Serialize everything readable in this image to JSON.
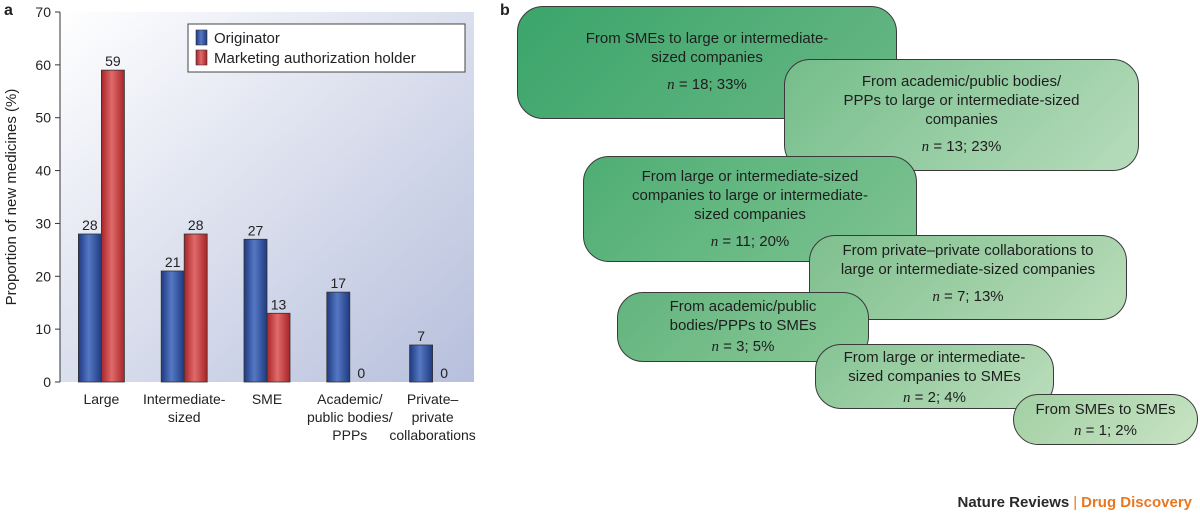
{
  "panel_a_label": "a",
  "panel_b_label": "b",
  "chart_data": {
    "type": "bar",
    "categories": [
      "Large",
      "Intermediate-sized",
      "SME",
      "Academic/public bodies/PPPs",
      "Private–private collaborations"
    ],
    "category_lines": [
      [
        "Large"
      ],
      [
        "Intermediate-",
        "sized"
      ],
      [
        "SME"
      ],
      [
        "Academic/",
        "public bodies/",
        "PPPs"
      ],
      [
        "Private–",
        "private",
        "collaborations"
      ]
    ],
    "series": [
      {
        "name": "Originator",
        "values": [
          28,
          21,
          27,
          17,
          7
        ],
        "color": "#2f4f9e"
      },
      {
        "name": "Marketing authorization holder",
        "values": [
          59,
          28,
          13,
          0,
          0
        ],
        "color": "#c8383a"
      }
    ],
    "ylabel": "Proportion of new medicines (%)",
    "ylim": [
      0,
      70
    ],
    "yticks": [
      0,
      10,
      20,
      30,
      40,
      50,
      60,
      70
    ],
    "legend_position": "top-right",
    "grid": false,
    "background": "gradient blue-grey"
  },
  "flows": [
    {
      "text": "From SMEs to large or intermediate-sized companies",
      "lines": [
        "From SMEs to large or intermediate-",
        "sized companies"
      ],
      "n": "18",
      "pct": "33%"
    },
    {
      "text": "From academic/public bodies/PPPs to large or intermediate-sized companies",
      "lines": [
        "From academic/public bodies/",
        "PPPs to large or intermediate-sized",
        "companies"
      ],
      "n": "13",
      "pct": "23%"
    },
    {
      "text": "From large or intermediate-sized companies to large or intermediate-sized companies",
      "lines": [
        "From large or intermediate-sized",
        "companies to large or intermediate-",
        "sized companies"
      ],
      "n": "11",
      "pct": "20%"
    },
    {
      "text": "From private–private collaborations to large or intermediate-sized companies",
      "lines": [
        "From private–private collaborations  to",
        "large or intermediate-sized companies"
      ],
      "n": "7",
      "pct": "13%"
    },
    {
      "text": "From academic/public bodies/PPPs to SMEs",
      "lines": [
        "From academic/public",
        "bodies/PPPs to SMEs"
      ],
      "n": "3",
      "pct": "5%"
    },
    {
      "text": "From large or intermediate-sized companies to SMEs",
      "lines": [
        "From large or intermediate-",
        "sized companies to SMEs"
      ],
      "n": "2",
      "pct": "4%"
    },
    {
      "text": "From SMEs to SMEs",
      "lines": [
        "From SMEs to SMEs"
      ],
      "n": "1",
      "pct": "2%"
    }
  ],
  "n_symbol": "n",
  "footer": {
    "journal": "Nature Reviews",
    "separator": "|",
    "section": "Drug Discovery"
  }
}
